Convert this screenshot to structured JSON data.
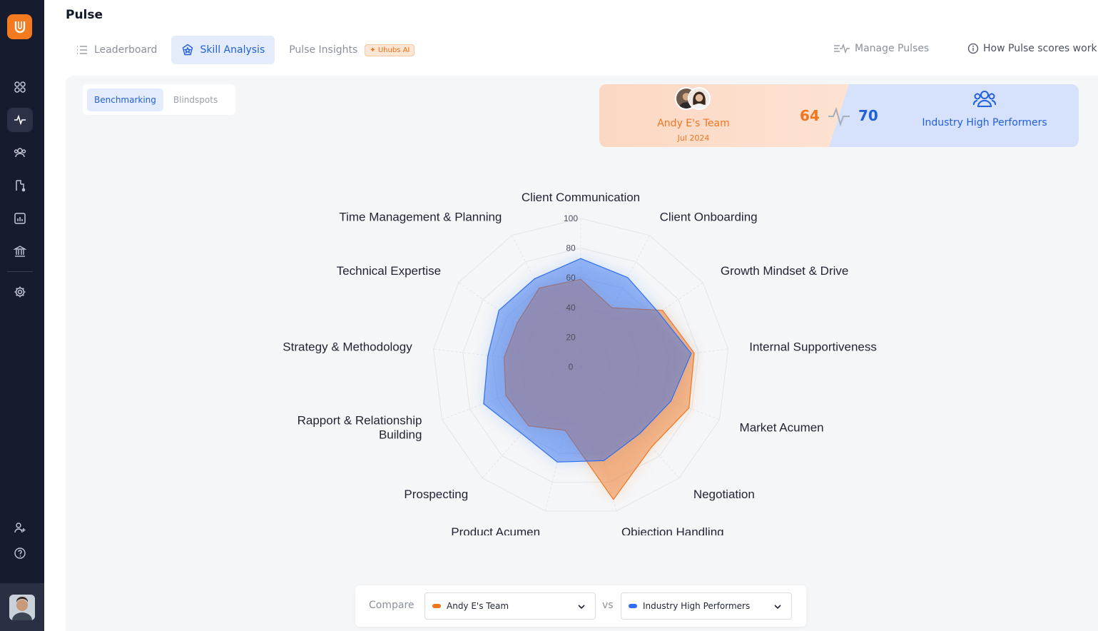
{
  "app": {
    "page_title": "Pulse"
  },
  "tabs": [
    {
      "label": "Leaderboard",
      "icon": "list-icon",
      "active": false
    },
    {
      "label": "Skill Analysis",
      "icon": "badge-icon",
      "active": true
    },
    {
      "label": "Pulse Insights",
      "icon": "",
      "active": false,
      "badge": "Uhubs AI"
    }
  ],
  "header_actions": {
    "manage_pulses": "Manage Pulses",
    "how_scores_work": "How Pulse scores work"
  },
  "subtabs": [
    {
      "label": "Benchmarking",
      "active": true
    },
    {
      "label": "Blindspots",
      "active": false
    }
  ],
  "banner": {
    "team_name": "Andy E's Team",
    "team_date": "Jul 2024",
    "team_score": "64",
    "benchmark_score": "70",
    "benchmark_name": "Industry High Performers"
  },
  "compare": {
    "label": "Compare",
    "vs": "vs",
    "left_value": "Andy E's Team",
    "right_value": "Industry High Performers"
  },
  "colors": {
    "team": "#f0751f",
    "benchmark": "#2e6ef0",
    "sidebar": "#171b2e",
    "accent": "#2260d9"
  },
  "sidebar_icons": [
    "grid-icon",
    "pulse-icon",
    "users-icon",
    "funnel-icon",
    "report-icon",
    "bank-icon",
    "gear-icon",
    "add-user-icon",
    "help-icon"
  ],
  "chart_data": {
    "type": "radar",
    "categories": [
      "Client Communication",
      "Client Onboarding",
      "Growth Mindset & Drive",
      "Internal Supportiveness",
      "Market Acumen",
      "Negotiation",
      "Objection Handling",
      "Product Acumen",
      "Prospecting",
      "Rapport & Relationship Building",
      "Strategy & Methodology",
      "Technical Expertise",
      "Time Management & Planning"
    ],
    "radial_ticks": [
      "0",
      "20",
      "40",
      "60",
      "80",
      "100"
    ],
    "rlim": [
      0,
      100
    ],
    "series": [
      {
        "name": "Andy E's Team",
        "color": "#f0751f",
        "values": [
          59,
          45,
          67,
          77,
          78,
          72,
          92,
          44,
          53,
          54,
          52,
          52,
          60
        ]
      },
      {
        "name": "Industry High Performers",
        "color": "#2e6ef0",
        "values": [
          73,
          68,
          64,
          75,
          65,
          60,
          65,
          66,
          60,
          70,
          63,
          67,
          67
        ]
      }
    ]
  }
}
